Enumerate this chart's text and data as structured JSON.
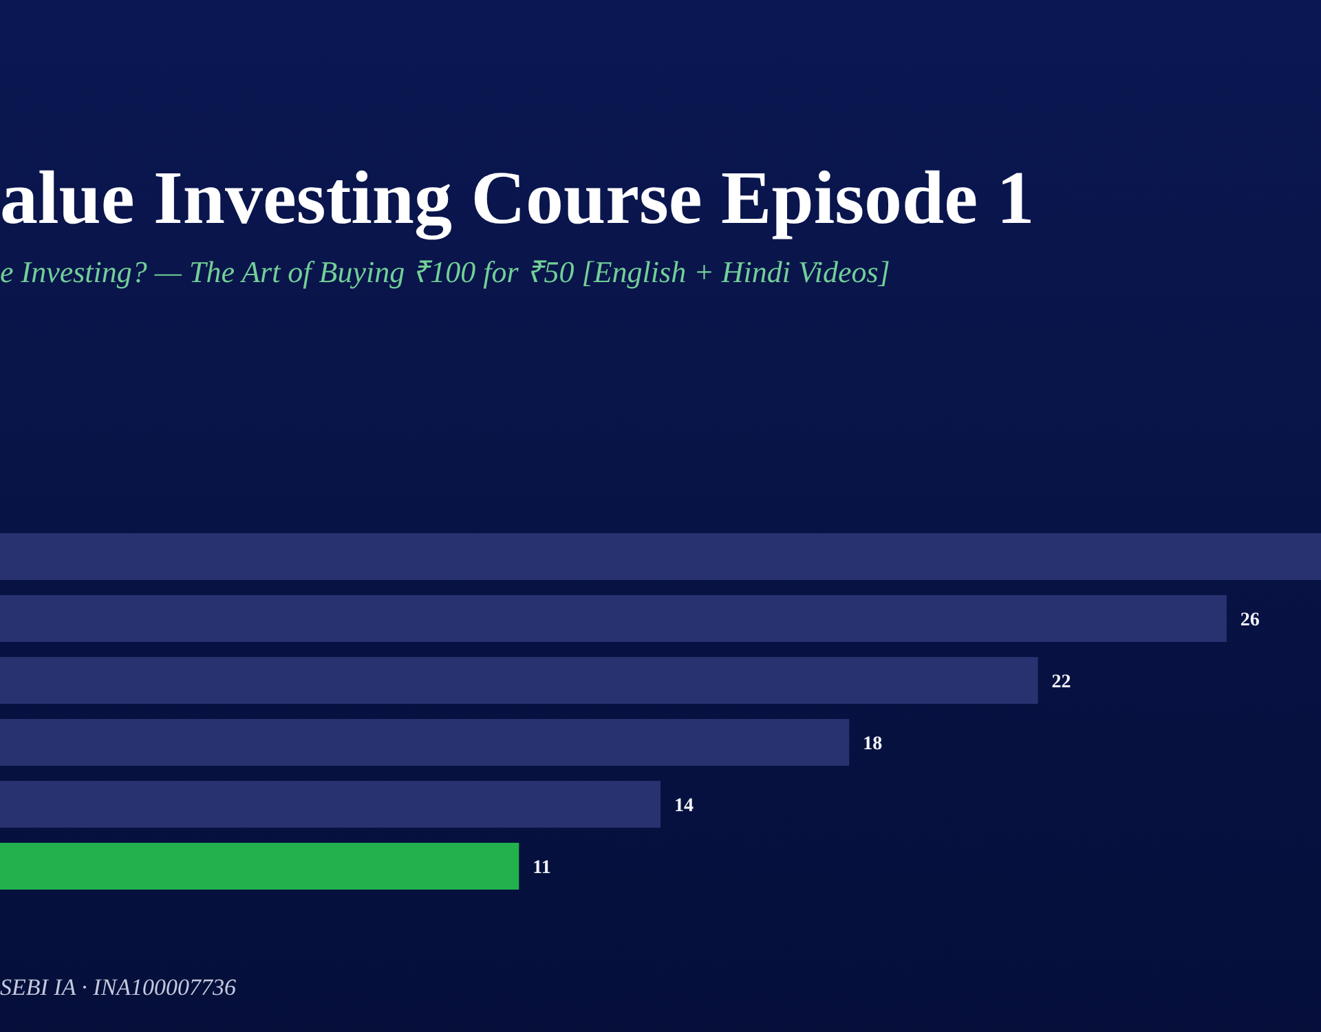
{
  "chart_data": {
    "type": "bar",
    "orientation": "horizontal",
    "title": "alue Investing Course Episode 1",
    "subtitle": "e Investing? — The Art of Buying ₹100 for ₹50 [English + Hindi Videos]",
    "categories": [
      null,
      null,
      null,
      null,
      null,
      null
    ],
    "values": [
      28,
      26,
      22,
      18,
      14,
      11
    ],
    "colors": [
      "#283270",
      "#283270",
      "#283270",
      "#283270",
      "#283270",
      "#22b14c"
    ],
    "value_labels": [
      null,
      "26",
      "22",
      "18",
      "14",
      "11"
    ],
    "annotations": [
      "SEBI IA · INA100007736"
    ]
  }
}
